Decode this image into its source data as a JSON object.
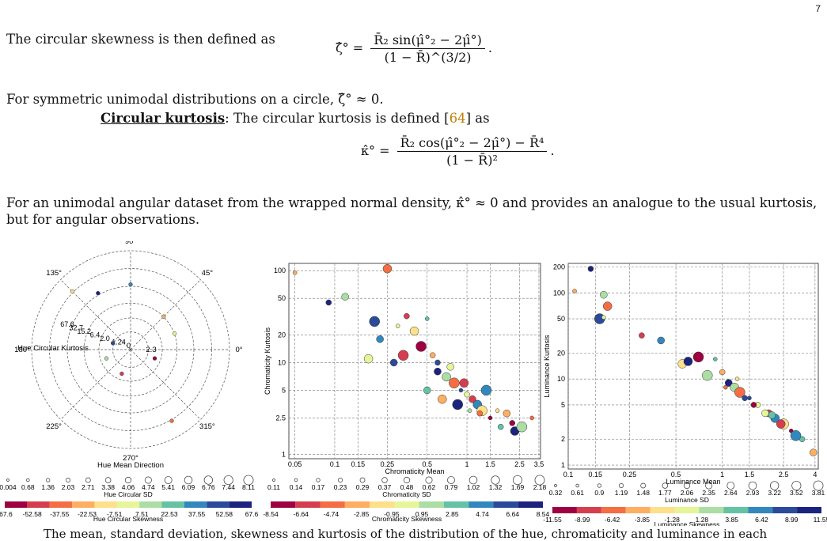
{
  "page_number": "7",
  "para1": "The circular skewness is then defined as",
  "eq1": {
    "lhs": "ζ̂° =",
    "num": "R̄₂ sin(μ̂°₂ − 2μ̂°)",
    "den": "(1 − R̄)^(3/2)",
    "tail": "."
  },
  "para2": "For symmetric unimodal distributions on a circle, ζ̂° ≈ 0.",
  "kurt_heading": "Circular kurtosis",
  "kurt_text_pre": ": The circular kurtosis is defined [",
  "kurt_ref": "64",
  "kurt_text_post": "] as",
  "eq2": {
    "lhs": "κ̂° =",
    "num": "R̄₂ cos(μ̂°₂ − 2μ̂°) − R̄⁴",
    "den": "(1 − R̄)²",
    "tail": "."
  },
  "para3_line1": "For an unimodal angular dataset from the wrapped normal density, κ̂° ≈ 0 and provides an analogue to the usual kurtosis,",
  "para3_line2": "but for angular observations.",
  "bottom_text": "The mean, standard deviation, skewness and kurtosis of the distribution of the hue, chromaticity and luminance in each",
  "polar": {
    "angle_labels": [
      "90°",
      "45°",
      "0°",
      "315°",
      "270°",
      "225°",
      "180°",
      "135°"
    ],
    "radial_labels": [
      "67.6",
      "32.7",
      "15.2",
      "6.4",
      "2.0",
      "1.24",
      "0"
    ],
    "center_label": "2.3",
    "hue_kurtosis_label": "Hue Circular Kurtosis",
    "direction_label": "Hue Mean Direction",
    "size_legend_values": [
      "0.004",
      "0.68",
      "1.36",
      "2.03",
      "2.71",
      "3.38",
      "4.06",
      "4.74",
      "5.41",
      "6.09",
      "6.76",
      "7.44",
      "8.11"
    ],
    "size_legend_title": "Hue Circular SD",
    "color_ticks": [
      "-67.6",
      "-52.58",
      "-37.55",
      "-22.53",
      "-7.51",
      "7.51",
      "22.53",
      "37.55",
      "52.58",
      "67.6"
    ],
    "color_title": "Hue Circular Skewness"
  },
  "chroma": {
    "x_ticks": [
      "0.05",
      "0.1",
      "0.15",
      "0.25",
      "0.5",
      "1",
      "1.5",
      "2.5",
      "3.5"
    ],
    "y_ticks": [
      "1",
      "2.5",
      "5",
      "10",
      "20",
      "50",
      "100"
    ],
    "xlabel": "Chromaticity Mean",
    "ylabel": "Chromaticity Kurtosis",
    "size_legend_values": [
      "0.11",
      "0.14",
      "0.17",
      "0.23",
      "0.29",
      "0.37",
      "0.48",
      "0.62",
      "0.79",
      "1.02",
      "1.32",
      "1.69",
      "2.18"
    ],
    "size_legend_title": "Chromaticity SD",
    "color_ticks": [
      "-8.54",
      "-6.64",
      "-4.74",
      "-2.85",
      "-0.95",
      "0.95",
      "2.85",
      "4.74",
      "6.64",
      "8.54"
    ],
    "color_title": "Chromaticity Skewness"
  },
  "lum": {
    "x_ticks": [
      "0.1",
      "0.15",
      "0.25",
      "0.5",
      "1",
      "1.5",
      "2.5",
      "4"
    ],
    "y_ticks": [
      "1",
      "2",
      "5",
      "10",
      "20",
      "50",
      "100",
      "200"
    ],
    "xlabel": "Luminance Mean",
    "ylabel": "Luminance Kurtosis",
    "size_legend_values": [
      "0.32",
      "0.61",
      "0.9",
      "1.19",
      "1.48",
      "1.77",
      "2.06",
      "2.35",
      "2.64",
      "2.93",
      "3.22",
      "3.52",
      "3.81"
    ],
    "size_legend_title": "Luminance SD",
    "color_ticks": [
      "-11.55",
      "-8.99",
      "-6.42",
      "-3.85",
      "-1.28",
      "1.28",
      "3.85",
      "6.42",
      "8.99",
      "11.55"
    ],
    "color_title": "Luminance Skewness"
  },
  "colormap": [
    "#9e0142",
    "#d53e4f",
    "#f46d43",
    "#fdae61",
    "#fee08b",
    "#e6f598",
    "#abdda4",
    "#66c2a5",
    "#3288bd",
    "#2b4a9a",
    "#1a237e"
  ],
  "chart_data": [
    {
      "type": "scatter",
      "title": "",
      "xlabel": "Hue Mean Direction",
      "ylabel": "Hue Circular Kurtosis",
      "x": [
        45,
        120,
        200,
        300,
        160,
        20,
        250,
        90,
        135,
        340
      ],
      "y": [
        6.4,
        15.2,
        2.0,
        32.7,
        1.24,
        6.4,
        2.0,
        15.2,
        32.7,
        2.0
      ]
    },
    {
      "type": "scatter",
      "title": "",
      "xlabel": "Chromaticity Mean",
      "ylabel": "Chromaticity Kurtosis",
      "xlim": [
        0.045,
        3.6
      ],
      "ylim": [
        0.9,
        120
      ],
      "x": [
        0.05,
        0.09,
        0.12,
        0.25,
        0.2,
        0.3,
        0.35,
        0.22,
        0.4,
        0.45,
        0.5,
        0.55,
        0.6,
        0.7,
        0.8,
        0.9,
        1.0,
        1.1,
        1.2,
        1.3,
        1.5,
        1.8,
        2.0,
        2.3,
        2.6,
        3.1,
        0.6,
        0.75,
        0.95,
        1.4,
        1.7,
        2.2,
        0.5,
        0.65,
        0.85,
        1.05,
        1.25,
        0.28,
        0.18,
        0.33
      ],
      "y": [
        95,
        45,
        52,
        105,
        28,
        25,
        32,
        18,
        22,
        15,
        30,
        12,
        8,
        7,
        6,
        5,
        4.5,
        4,
        3.5,
        3,
        2.5,
        2,
        2.8,
        1.8,
        2,
        2.5,
        10,
        9,
        6,
        5,
        3,
        2.2,
        5,
        4,
        3.5,
        3,
        2.8,
        10,
        11,
        12
      ]
    },
    {
      "type": "scatter",
      "title": "",
      "xlabel": "Luminance Mean",
      "ylabel": "Luminance Kurtosis",
      "xlim": [
        0.1,
        4.2
      ],
      "ylim": [
        0.9,
        220
      ],
      "x": [
        0.11,
        0.14,
        0.17,
        0.18,
        0.16,
        0.17,
        0.3,
        0.4,
        0.55,
        0.7,
        0.9,
        1.0,
        1.1,
        1.2,
        1.3,
        1.5,
        1.7,
        2.0,
        2.2,
        2.5,
        2.8,
        3.3,
        3.9,
        0.6,
        0.8,
        1.05,
        1.4,
        1.9,
        2.4,
        3.0,
        1.25,
        1.6,
        2.1
      ],
      "y": [
        105,
        190,
        95,
        70,
        50,
        52,
        32,
        28,
        15,
        18,
        17,
        12,
        9,
        8,
        7,
        6,
        5,
        4,
        3.5,
        3,
        2.5,
        2,
        1.4,
        16,
        11,
        8,
        6,
        4,
        3,
        2.2,
        10,
        5,
        3.8
      ]
    }
  ]
}
